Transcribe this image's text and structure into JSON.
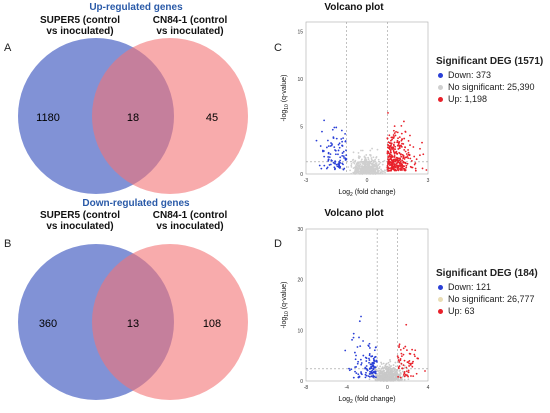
{
  "panels": {
    "a": "A",
    "b": "B",
    "c": "C",
    "d": "D"
  },
  "venn_up": {
    "title": "Up-regulated genes",
    "left_label_1": "SUPER5 (control",
    "left_label_2": "vs inoculated)",
    "right_label_1": "CN84-1 (control",
    "right_label_2": "vs inoculated)",
    "colors": {
      "left": "#6b7fcf",
      "right": "#f37375",
      "overlap": "#a04a6e"
    }
  },
  "venn_down": {
    "title": "Down-regulated genes",
    "left_label_1": "SUPER5 (control",
    "left_label_2": "vs inoculated)",
    "right_label_1": "CN84-1 (control",
    "right_label_2": "vs inoculated)"
  },
  "volcano_c": {
    "title": "Volcano plot",
    "legend_title": "Significant DEG (1571)",
    "legend": [
      "Down: 373",
      "No significant: 25,390",
      "Up: 1,198"
    ],
    "legend_colors": [
      "#2a3fd6",
      "#cfcfcf",
      "#e8202a"
    ],
    "xlabel": "Log2 (fold change)",
    "ylabel": "-log10 (q-value)"
  },
  "volcano_d": {
    "title": "Volcano plot",
    "legend_title": "Significant DEG (184)",
    "legend": [
      "Down: 121",
      "No significant: 26,777",
      "Up: 63"
    ],
    "legend_colors": [
      "#2a3fd6",
      "#cfcfcf",
      "#e8202a"
    ],
    "xlabel": "Log2 (fold change)",
    "ylabel": "-log10 (q-value)"
  },
  "chart_data": [
    {
      "type": "venn",
      "title": "Up-regulated genes",
      "sets": [
        "SUPER5 (control vs inoculated)",
        "CN84-1 (control vs inoculated)"
      ],
      "only_left": 1180,
      "overlap": 18,
      "only_right": 45
    },
    {
      "type": "venn",
      "title": "Down-regulated genes",
      "sets": [
        "SUPER5 (control vs inoculated)",
        "CN84-1 (control vs inoculated)"
      ],
      "only_left": 360,
      "overlap": 13,
      "only_right": 108
    },
    {
      "type": "scatter",
      "title": "Volcano plot",
      "xlabel": "Log2 (fold change)",
      "ylabel": "-log10 (q-value)",
      "xlim": [
        -3,
        3
      ],
      "xticks": [
        -3,
        0,
        3
      ],
      "ylim": [
        0,
        16
      ],
      "yticks": [
        0,
        5,
        10,
        15
      ],
      "series": [
        {
          "name": "Down",
          "count": 373
        },
        {
          "name": "No significant",
          "count": 25390
        },
        {
          "name": "Up",
          "count": 1198
        }
      ],
      "total_significant": 1571
    },
    {
      "type": "scatter",
      "title": "Volcano plot",
      "xlabel": "Log2 (fold change)",
      "ylabel": "-log10 (q-value)",
      "xlim": [
        -8,
        4
      ],
      "xticks": [
        -8,
        -4,
        0,
        4
      ],
      "ylim": [
        0,
        30
      ],
      "yticks": [
        0,
        10,
        20,
        30
      ],
      "series": [
        {
          "name": "Down",
          "count": 121
        },
        {
          "name": "No significant",
          "count": 26777
        },
        {
          "name": "Up",
          "count": 63
        }
      ],
      "total_significant": 184
    }
  ]
}
